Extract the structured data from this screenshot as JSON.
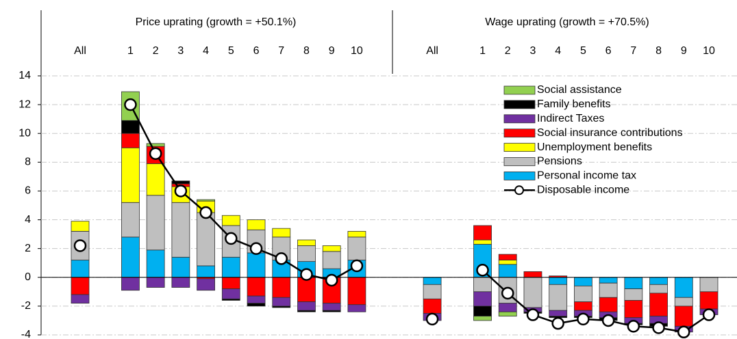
{
  "chart_data": {
    "type": "bar",
    "stacked": true,
    "annotations": [
      "Price uprating (growth = +50.1%)",
      "Wage uprating (growth = +70.5%)"
    ],
    "categories": [
      "All",
      null,
      "1",
      "2",
      "3",
      "4",
      "5",
      "6",
      "7",
      "8",
      "9",
      "10",
      null,
      null,
      "All",
      null,
      "1",
      "2",
      "3",
      "4",
      "5",
      "6",
      "7",
      "8",
      "9",
      "10"
    ],
    "ylim": [
      -4,
      14
    ],
    "yticks": [
      -4,
      -2,
      0,
      2,
      4,
      6,
      8,
      10,
      12,
      14
    ],
    "grid": true,
    "legend": "upper right",
    "series": [
      {
        "name": "Social assistance",
        "color": "#92d050",
        "values": [
          0,
          null,
          2.0,
          0.2,
          0,
          0.1,
          0,
          0,
          0,
          0,
          0,
          0,
          null,
          null,
          0,
          null,
          -0.3,
          -0.3,
          0,
          0,
          0,
          0,
          0,
          0,
          0,
          0
        ]
      },
      {
        "name": "Family benefits",
        "color": "#000000",
        "values": [
          0,
          null,
          0.9,
          0,
          0.2,
          0,
          -0.1,
          -0.2,
          -0.1,
          -0.1,
          -0.1,
          0,
          null,
          null,
          0,
          null,
          -0.7,
          0,
          -0.1,
          -0.1,
          -0.1,
          -0.2,
          -0.1,
          -0.2,
          0,
          0
        ]
      },
      {
        "name": "Indirect Taxes",
        "color": "#7030a0",
        "values": [
          -0.6,
          null,
          -0.9,
          -0.7,
          -0.7,
          -0.8,
          -0.7,
          -0.5,
          -0.6,
          -0.6,
          -0.5,
          -0.5,
          null,
          null,
          -0.5,
          null,
          -1.0,
          -0.6,
          -0.3,
          -0.4,
          -0.4,
          -0.4,
          -0.4,
          -0.5,
          -0.4,
          -0.4
        ]
      },
      {
        "name": "Social insurance contributions",
        "color": "#ff0000",
        "values": [
          -1.2,
          null,
          1.0,
          1.2,
          0.2,
          -0.1,
          -0.8,
          -1.3,
          -1.4,
          -1.7,
          -1.8,
          -1.9,
          null,
          null,
          -1.0,
          null,
          1.0,
          0.4,
          0.4,
          0.1,
          -0.6,
          -1.0,
          -1.2,
          -1.6,
          -1.4,
          -1.2
        ]
      },
      {
        "name": "Unemployment benefits",
        "color": "#ffff00",
        "values": [
          0.7,
          null,
          3.8,
          2.2,
          1.1,
          0.8,
          0.7,
          0.7,
          0.6,
          0.4,
          0.4,
          0.4,
          null,
          null,
          0,
          null,
          0.3,
          0.3,
          0,
          0,
          0,
          0,
          0,
          0,
          0,
          0
        ]
      },
      {
        "name": "Pensions",
        "color": "#bfbfbf",
        "values": [
          2.0,
          null,
          2.4,
          3.8,
          3.8,
          3.7,
          2.2,
          1.6,
          1.6,
          1.1,
          1.2,
          1.6,
          null,
          null,
          -1.0,
          null,
          -1.0,
          -1.8,
          -2.1,
          -1.8,
          -1.1,
          -1.0,
          -0.8,
          -0.6,
          -0.6,
          -1.0
        ]
      },
      {
        "name": "Personal income tax",
        "color": "#00b0f0",
        "values": [
          1.2,
          null,
          2.8,
          1.9,
          1.4,
          0.8,
          1.4,
          1.7,
          1.2,
          1.1,
          0.6,
          1.2,
          null,
          null,
          -0.5,
          null,
          2.3,
          0.9,
          0,
          -0.5,
          -0.6,
          -0.4,
          -0.8,
          -0.5,
          -1.4,
          0
        ]
      },
      {
        "name": "Disposable income",
        "type": "line",
        "color": "#000000",
        "values": [
          2.2,
          null,
          12.0,
          8.6,
          6.0,
          4.5,
          2.7,
          2.0,
          1.3,
          0.2,
          -0.2,
          0.8,
          null,
          null,
          -2.9,
          null,
          0.5,
          -1.1,
          -2.6,
          -3.2,
          -2.9,
          -3.0,
          -3.4,
          -3.5,
          -3.8,
          -2.6
        ]
      }
    ]
  }
}
